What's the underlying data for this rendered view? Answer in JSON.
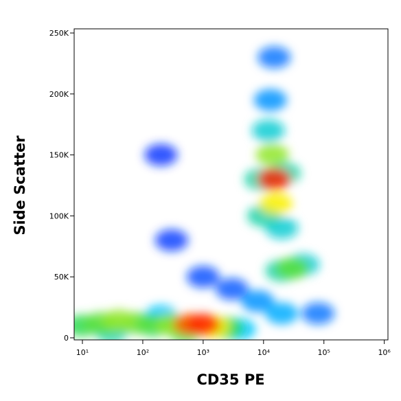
{
  "chart_data": {
    "type": "density",
    "x_label": "CD35 PE",
    "y_label": "Side Scatter",
    "xscale": "log",
    "xlim": [
      7.3,
      1150000
    ],
    "ylim": [
      -1700,
      253400
    ],
    "xticks": [
      {
        "value": 10,
        "label": "10¹"
      },
      {
        "value": 100,
        "label": "10²"
      },
      {
        "value": 1000,
        "label": "10³"
      },
      {
        "value": 10000,
        "label": "10⁴"
      },
      {
        "value": 100000,
        "label": "10⁵"
      },
      {
        "value": 1000000,
        "label": "10⁶"
      }
    ],
    "yticks": [
      0,
      {
        "value": 50000,
        "label": "50K"
      },
      {
        "value": 100000,
        "label": "100K"
      },
      {
        "value": 150000,
        "label": "150K"
      },
      {
        "value": 200000,
        "label": "200K"
      },
      {
        "value": 250000,
        "label": "250K"
      }
    ],
    "x": [
      200,
      300,
      1000,
      3000,
      80000,
      8000,
      20000,
      15000,
      13000,
      4000,
      200,
      12000,
      45000,
      20000,
      10000,
      9000,
      22000,
      20000,
      10,
      150,
      30,
      2500,
      80,
      500,
      30000,
      14000,
      20,
      40,
      300,
      1500,
      16000,
      600,
      1000,
      15000
    ],
    "y": [
      150000,
      80000,
      50000,
      40000,
      20000,
      30000,
      20000,
      230000,
      195000,
      7000,
      18000,
      170000,
      60000,
      90000,
      100000,
      130000,
      135000,
      55000,
      10000,
      10000,
      5000,
      8000,
      12000,
      5000,
      57000,
      150000,
      12000,
      14000,
      11000,
      9000,
      110000,
      11000,
      11000,
      130000
    ],
    "values": [
      0.03,
      0.05,
      0.08,
      0.1,
      0.15,
      0.2,
      0.25,
      0.15,
      0.2,
      0.3,
      0.3,
      0.35,
      0.35,
      0.35,
      0.4,
      0.4,
      0.4,
      0.4,
      0.5,
      0.5,
      0.4,
      0.5,
      0.55,
      0.5,
      0.55,
      0.6,
      0.55,
      0.6,
      0.6,
      0.7,
      0.7,
      0.85,
      0.9,
      0.9
    ]
  }
}
